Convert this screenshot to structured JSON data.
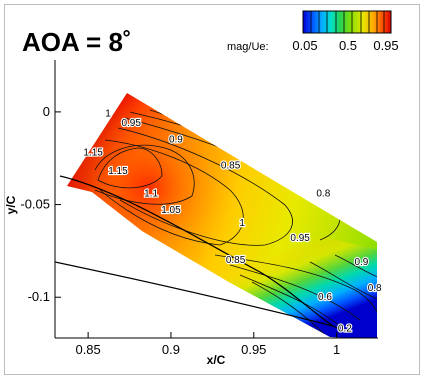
{
  "chart_data": {
    "type": "heatmap",
    "title": "AOA = 8˚",
    "xlabel": "x/C",
    "ylabel": "y/C",
    "xlim": [
      0.83,
      1.025
    ],
    "ylim": [
      -0.122,
      0.028
    ],
    "x_ticks": [
      "0.85",
      "0.9",
      "0.95",
      "1"
    ],
    "x_tick_values": [
      0.85,
      0.9,
      0.95,
      1.0
    ],
    "y_ticks": [
      "0",
      "-0.05",
      "-0.1"
    ],
    "y_tick_values": [
      0.0,
      -0.05,
      -0.1
    ],
    "legend": {
      "label": "mag/Ue:",
      "tick_labels": [
        "0.05",
        "0.5",
        "0.95"
      ],
      "colors": [
        "#0000d0",
        "#0066ff",
        "#00ccff",
        "#00e5b0",
        "#33d633",
        "#99e000",
        "#e5e500",
        "#ffb000",
        "#ff7a00",
        "#ff3a00",
        "#e00000"
      ]
    },
    "contour_labels": [
      {
        "text": "1.15",
        "x": 0.853,
        "y": -0.022
      },
      {
        "text": "1.15",
        "x": 0.868,
        "y": -0.032
      },
      {
        "text": "1.1",
        "x": 0.888,
        "y": -0.044
      },
      {
        "text": "1.05",
        "x": 0.9,
        "y": -0.053
      },
      {
        "text": "1",
        "x": 0.862,
        "y": -0.001
      },
      {
        "text": "0.95",
        "x": 0.876,
        "y": -0.006
      },
      {
        "text": "0.9",
        "x": 0.903,
        "y": -0.015
      },
      {
        "text": "0.85",
        "x": 0.936,
        "y": -0.029
      },
      {
        "text": "0.8",
        "x": 0.992,
        "y": -0.044
      },
      {
        "text": "1",
        "x": 0.943,
        "y": -0.06
      },
      {
        "text": "0.95",
        "x": 0.978,
        "y": -0.068
      },
      {
        "text": "0.85",
        "x": 0.939,
        "y": -0.08
      },
      {
        "text": "0.9",
        "x": 1.015,
        "y": -0.081
      },
      {
        "text": "0.6",
        "x": 0.993,
        "y": -0.1
      },
      {
        "text": "0.8",
        "x": 1.023,
        "y": -0.095
      },
      {
        "text": "0.2",
        "x": 1.005,
        "y": -0.117
      }
    ]
  }
}
